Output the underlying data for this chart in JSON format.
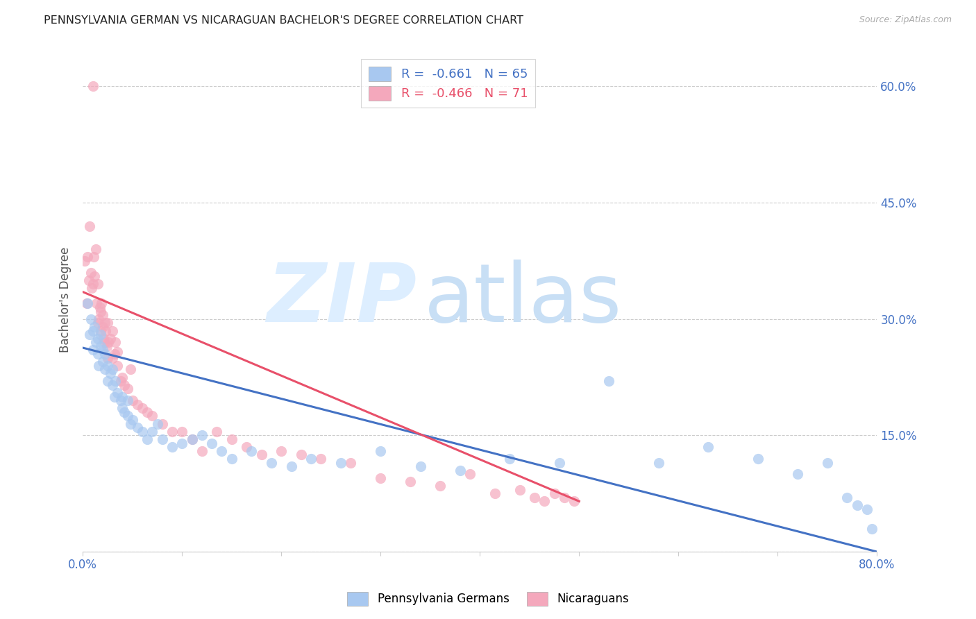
{
  "title": "PENNSYLVANIA GERMAN VS NICARAGUAN BACHELOR'S DEGREE CORRELATION CHART",
  "source": "Source: ZipAtlas.com",
  "ylabel": "Bachelor's Degree",
  "right_yticklabels": [
    "",
    "15.0%",
    "30.0%",
    "45.0%",
    "60.0%"
  ],
  "xmin": 0.0,
  "xmax": 0.8,
  "ymin": 0.0,
  "ymax": 0.65,
  "blue_r": "-0.661",
  "blue_n": "65",
  "pink_r": "-0.466",
  "pink_n": "71",
  "blue_color": "#a8c8f0",
  "pink_color": "#f4a8bc",
  "blue_line_color": "#4472c4",
  "pink_line_color": "#e8506a",
  "legend_label_blue": "Pennsylvania Germans",
  "legend_label_pink": "Nicaraguans",
  "watermark_zip": "ZIP",
  "watermark_atlas": "atlas",
  "watermark_color": "#ddeeff",
  "blue_scatter_x": [
    0.005,
    0.007,
    0.008,
    0.01,
    0.01,
    0.012,
    0.013,
    0.015,
    0.015,
    0.016,
    0.018,
    0.018,
    0.02,
    0.02,
    0.022,
    0.022,
    0.025,
    0.025,
    0.028,
    0.03,
    0.03,
    0.032,
    0.033,
    0.035,
    0.038,
    0.04,
    0.04,
    0.042,
    0.045,
    0.045,
    0.048,
    0.05,
    0.055,
    0.06,
    0.065,
    0.07,
    0.075,
    0.08,
    0.09,
    0.1,
    0.11,
    0.12,
    0.13,
    0.14,
    0.15,
    0.17,
    0.19,
    0.21,
    0.23,
    0.26,
    0.3,
    0.34,
    0.38,
    0.43,
    0.48,
    0.53,
    0.58,
    0.63,
    0.68,
    0.72,
    0.75,
    0.77,
    0.78,
    0.79,
    0.795
  ],
  "blue_scatter_y": [
    0.32,
    0.28,
    0.3,
    0.285,
    0.26,
    0.29,
    0.27,
    0.255,
    0.275,
    0.24,
    0.265,
    0.28,
    0.245,
    0.26,
    0.235,
    0.255,
    0.22,
    0.24,
    0.23,
    0.215,
    0.235,
    0.2,
    0.22,
    0.205,
    0.195,
    0.185,
    0.2,
    0.18,
    0.175,
    0.195,
    0.165,
    0.17,
    0.16,
    0.155,
    0.145,
    0.155,
    0.165,
    0.145,
    0.135,
    0.14,
    0.145,
    0.15,
    0.14,
    0.13,
    0.12,
    0.13,
    0.115,
    0.11,
    0.12,
    0.115,
    0.13,
    0.11,
    0.105,
    0.12,
    0.115,
    0.22,
    0.115,
    0.135,
    0.12,
    0.1,
    0.115,
    0.07,
    0.06,
    0.055,
    0.03
  ],
  "pink_scatter_x": [
    0.002,
    0.004,
    0.005,
    0.006,
    0.007,
    0.008,
    0.009,
    0.01,
    0.01,
    0.011,
    0.012,
    0.013,
    0.014,
    0.015,
    0.015,
    0.016,
    0.017,
    0.018,
    0.018,
    0.019,
    0.02,
    0.02,
    0.021,
    0.022,
    0.022,
    0.023,
    0.024,
    0.025,
    0.025,
    0.026,
    0.028,
    0.03,
    0.03,
    0.032,
    0.033,
    0.035,
    0.035,
    0.038,
    0.04,
    0.042,
    0.045,
    0.048,
    0.05,
    0.055,
    0.06,
    0.065,
    0.07,
    0.08,
    0.09,
    0.1,
    0.11,
    0.12,
    0.135,
    0.15,
    0.165,
    0.18,
    0.2,
    0.22,
    0.24,
    0.27,
    0.3,
    0.33,
    0.36,
    0.39,
    0.415,
    0.44,
    0.455,
    0.465,
    0.475,
    0.485,
    0.495
  ],
  "pink_scatter_y": [
    0.375,
    0.32,
    0.38,
    0.35,
    0.42,
    0.36,
    0.34,
    0.6,
    0.345,
    0.38,
    0.355,
    0.39,
    0.32,
    0.345,
    0.295,
    0.3,
    0.315,
    0.285,
    0.31,
    0.32,
    0.29,
    0.305,
    0.275,
    0.295,
    0.27,
    0.285,
    0.265,
    0.25,
    0.295,
    0.27,
    0.275,
    0.25,
    0.285,
    0.255,
    0.27,
    0.258,
    0.24,
    0.22,
    0.225,
    0.215,
    0.21,
    0.235,
    0.195,
    0.19,
    0.185,
    0.18,
    0.175,
    0.165,
    0.155,
    0.155,
    0.145,
    0.13,
    0.155,
    0.145,
    0.135,
    0.125,
    0.13,
    0.125,
    0.12,
    0.115,
    0.095,
    0.09,
    0.085,
    0.1,
    0.075,
    0.08,
    0.07,
    0.065,
    0.075,
    0.07,
    0.065
  ],
  "blue_trendline_x": [
    0.0,
    0.8
  ],
  "blue_trendline_y": [
    0.263,
    0.0
  ],
  "pink_trendline_x": [
    0.0,
    0.5
  ],
  "pink_trendline_y": [
    0.335,
    0.065
  ]
}
